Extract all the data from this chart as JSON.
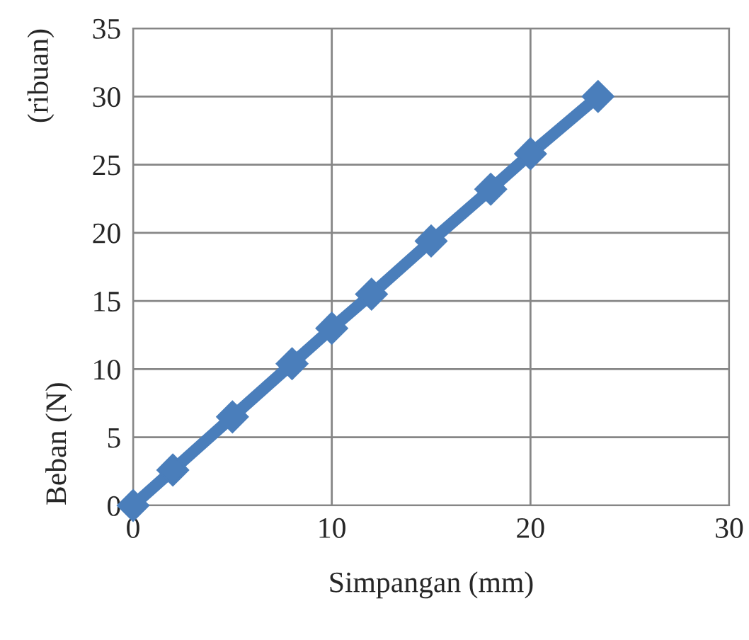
{
  "chart_data": {
    "type": "line",
    "xlabel": "Simpangan (mm)",
    "ylabel": "Beban (N)",
    "annotations": [
      "(ribuan)"
    ],
    "series": [
      {
        "color": "#4a7ebb",
        "x": [
          0,
          2,
          5,
          8,
          10,
          12,
          15,
          18,
          20,
          23.4
        ],
        "values": [
          0,
          2.6,
          6.5,
          10.4,
          13,
          15.5,
          19.4,
          23.2,
          25.8,
          30
        ]
      }
    ],
    "xlim": [
      0,
      30
    ],
    "xticks": [
      0,
      10,
      20,
      30
    ],
    "ylim": [
      0,
      35
    ],
    "yticks": [
      0,
      5,
      10,
      15,
      20,
      25,
      30,
      35
    ],
    "grid": true,
    "marker": "diamond",
    "line_style": "solid"
  }
}
